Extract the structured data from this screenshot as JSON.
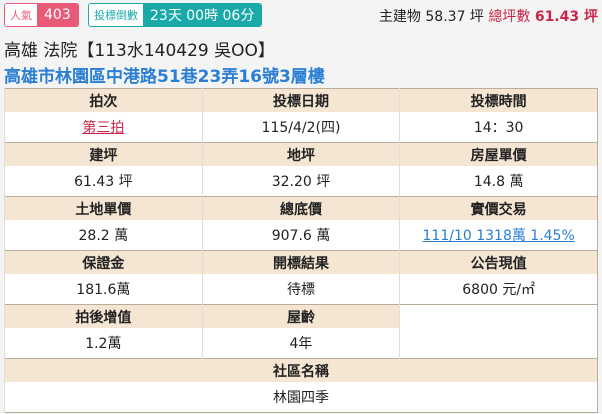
{
  "header": {
    "popularity_label": "人氣",
    "popularity_value": "403",
    "countdown_label": "投標倒數",
    "countdown_value": "23天 00時 06分",
    "main_building_label": "主建物",
    "main_building_value": "58.37 坪",
    "total_area_label": "總坪數",
    "total_area_value": "61.43 坪",
    "title": "高雄 法院【113水140429 吳OO】",
    "address": "高雄市林園區中港路51巷23弄16號3層樓"
  },
  "colors": {
    "popularity": "#e85a78",
    "countdown": "#1aa9a9",
    "address": "#2a7fd4",
    "header_bg": "#f5e6d3",
    "accent_red": "#c8284a"
  },
  "table": {
    "rows": [
      {
        "headers": [
          "拍次",
          "投標日期",
          "投標時間"
        ],
        "values": [
          "第三拍",
          "115/4/2(四)",
          "14：30"
        ]
      },
      {
        "headers": [
          "建坪",
          "地坪",
          "房屋單價"
        ],
        "values": [
          "61.43 坪",
          "32.20 坪",
          "14.8 萬"
        ]
      },
      {
        "headers": [
          "土地單價",
          "總底價",
          "實價交易"
        ],
        "values": [
          "28.2 萬",
          "907.6 萬",
          "111/10 1318萬 1.45%"
        ]
      },
      {
        "headers": [
          "保證金",
          "開標結果",
          "公告現值"
        ],
        "values": [
          "181.6萬",
          "待標",
          "6800 元/㎡"
        ]
      },
      {
        "headers": [
          "拍後增值",
          "屋齡"
        ],
        "values": [
          "1.2萬",
          "4年"
        ]
      }
    ],
    "community_label": "社區名稱",
    "community_value": "林園四季"
  }
}
